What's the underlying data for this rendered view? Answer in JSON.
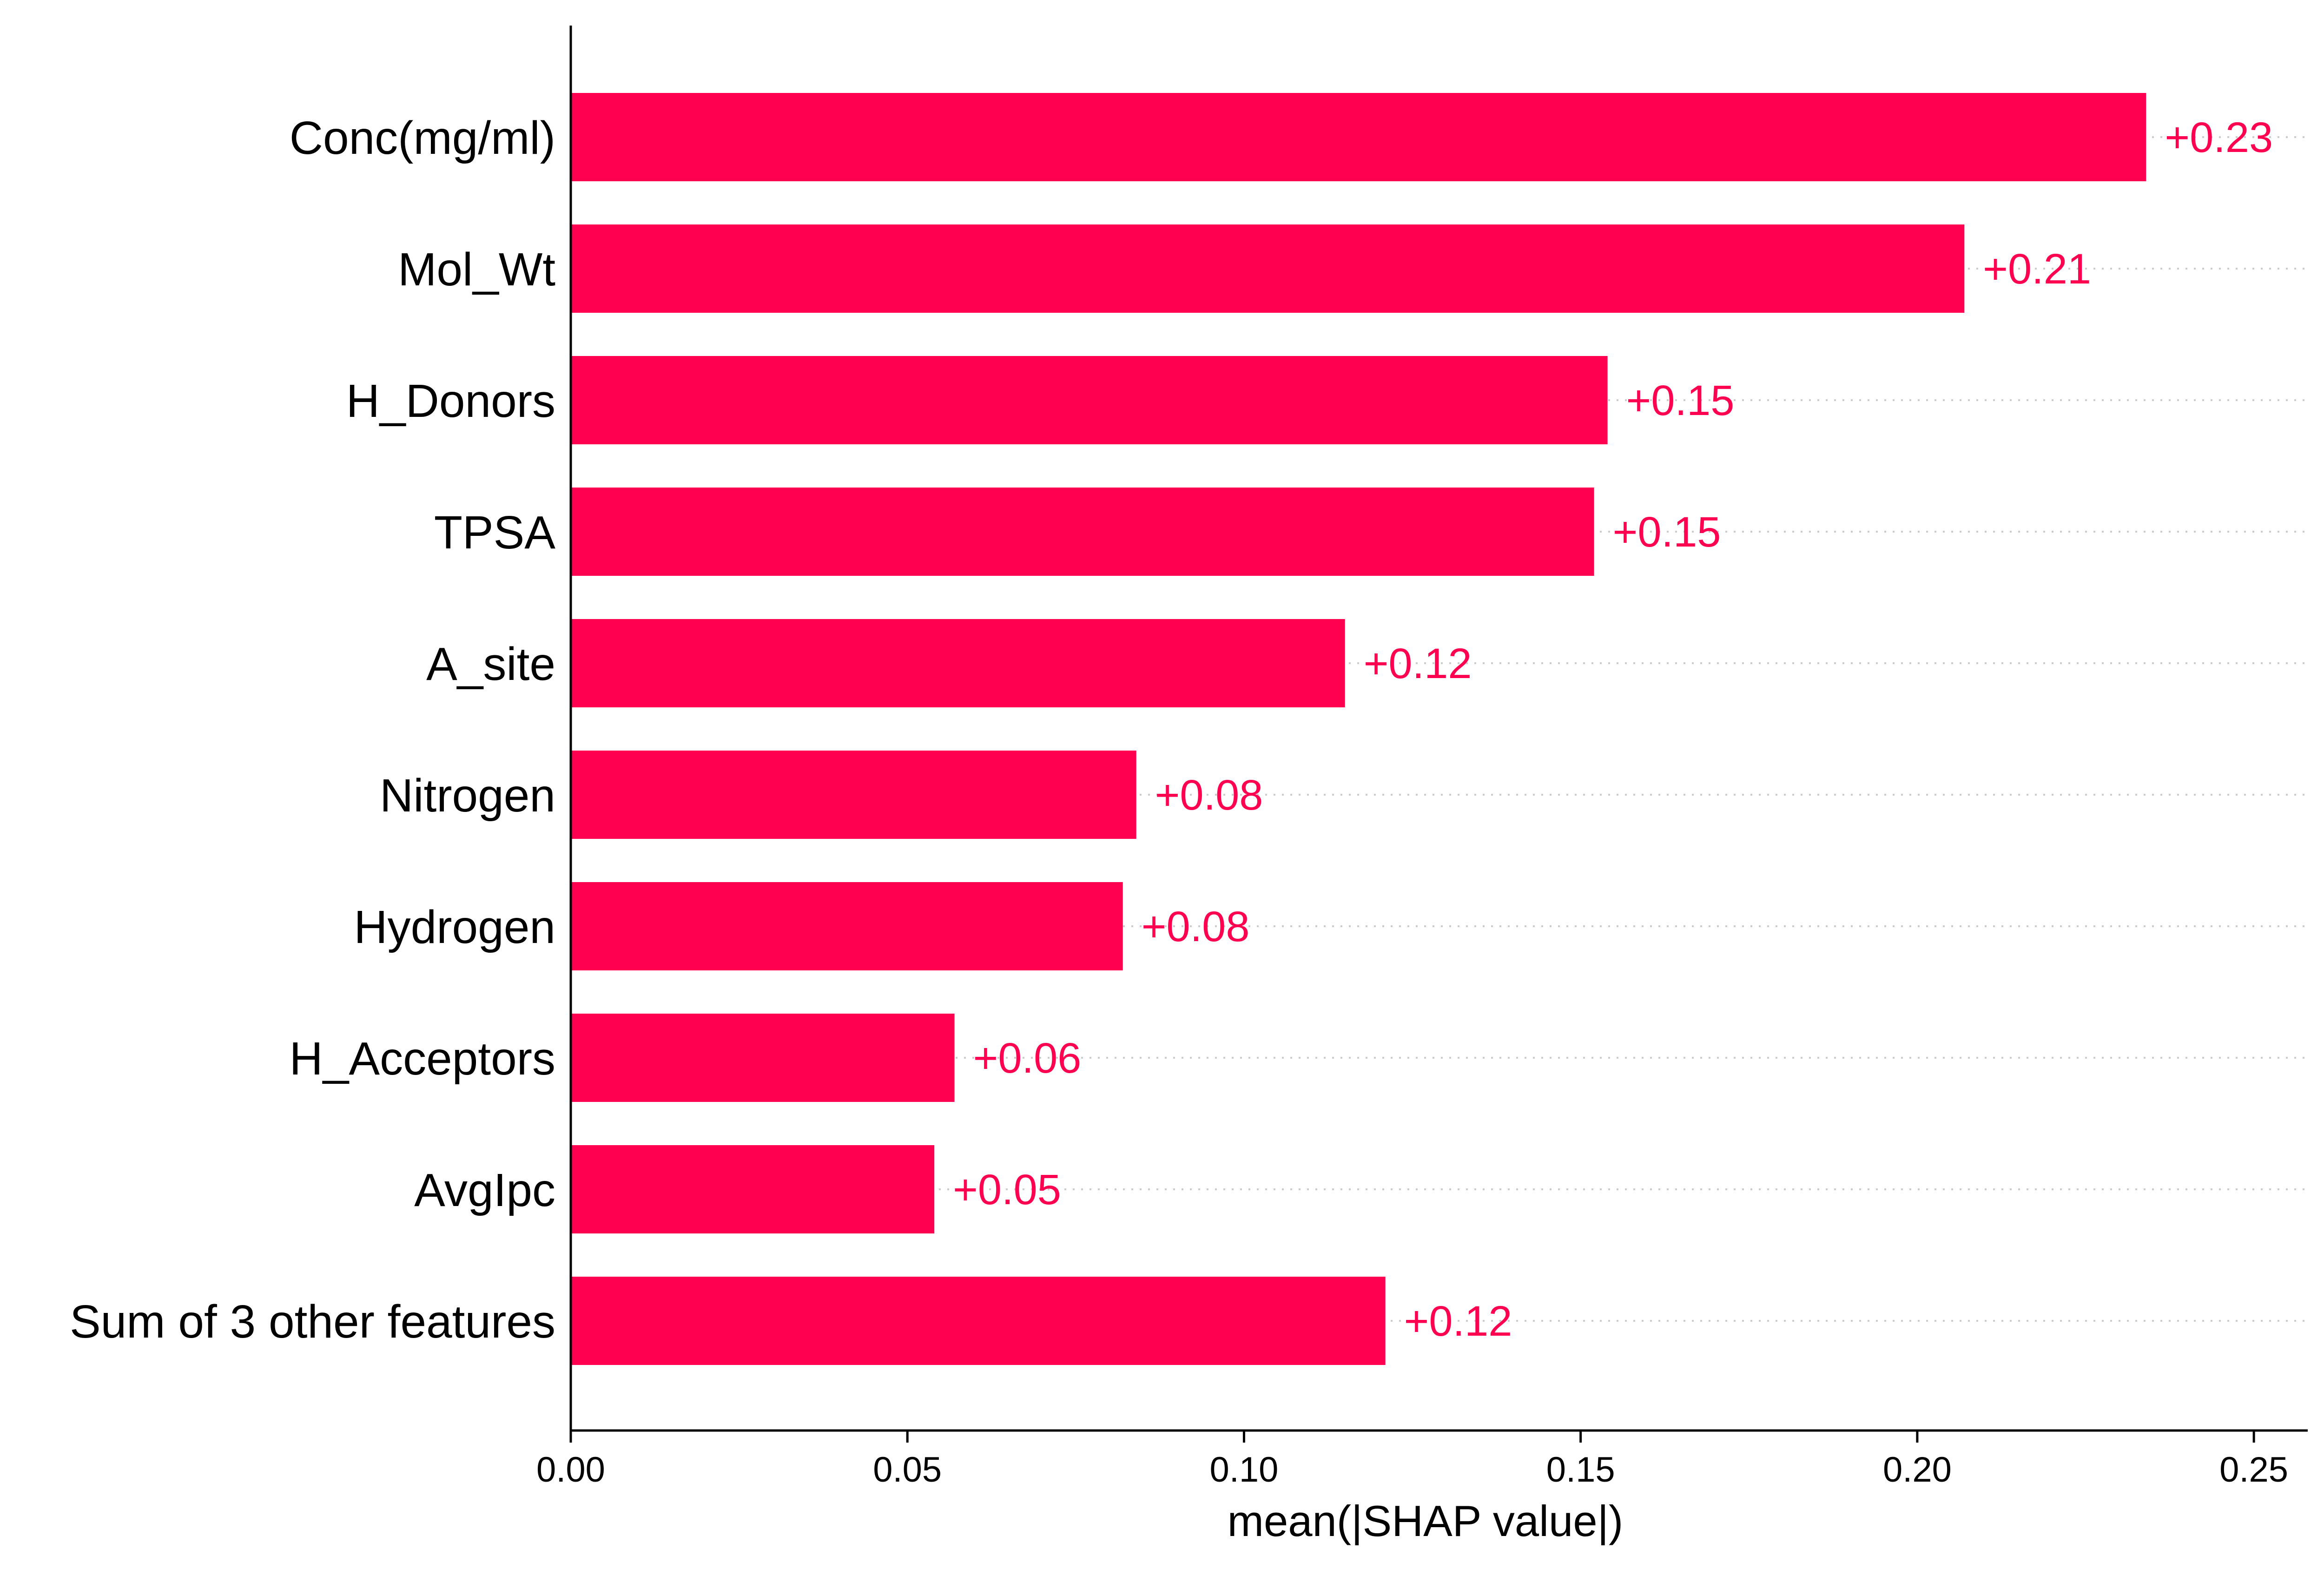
{
  "chart_data": {
    "type": "bar",
    "orientation": "horizontal",
    "categories": [
      "Conc(mg/ml)",
      "Mol_Wt",
      "H_Donors",
      "TPSA",
      "A_site",
      "Nitrogen",
      "Hydrogen",
      "H_Acceptors",
      "AvgIpc",
      "Sum of 3 other features"
    ],
    "values": [
      0.234,
      0.207,
      0.154,
      0.152,
      0.115,
      0.084,
      0.082,
      0.057,
      0.054,
      0.121
    ],
    "value_labels": [
      "+0.23",
      "+0.21",
      "+0.15",
      "+0.15",
      "+0.12",
      "+0.08",
      "+0.08",
      "+0.06",
      "+0.05",
      "+0.12"
    ],
    "xlabel": "mean(|SHAP value|)",
    "ylabel": "",
    "xlim": [
      0,
      0.258
    ],
    "xticks": [
      0.0,
      0.05,
      0.1,
      0.15,
      0.2,
      0.25
    ],
    "xtick_labels": [
      "0.00",
      "0.05",
      "0.10",
      "0.15",
      "0.20",
      "0.25"
    ],
    "grid": false,
    "row_guides": "dotted",
    "colors": {
      "bar": "#ff0051",
      "label": "#ff0051",
      "axis": "#000000",
      "guide": "#cccccc"
    }
  }
}
